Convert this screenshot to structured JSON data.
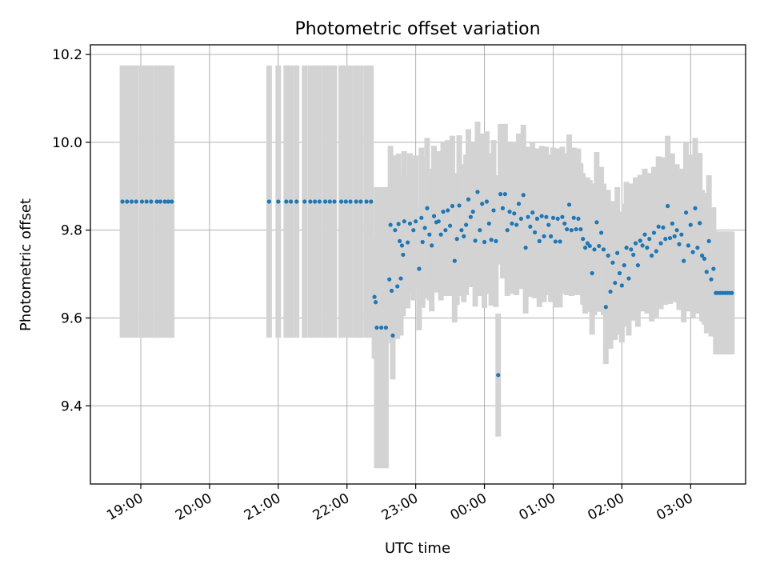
{
  "chart_data": {
    "type": "scatter",
    "title": "Photometric offset variation",
    "xlabel": "UTC time",
    "ylabel": "Photometric offset",
    "x_ticks": [
      "19:00",
      "20:00",
      "21:00",
      "22:00",
      "23:00",
      "00:00",
      "01:00",
      "02:00",
      "03:00"
    ],
    "y_ticks": [
      "9.4",
      "9.6",
      "9.8",
      "10.0",
      "10.2"
    ],
    "xlim": [
      "18:16",
      "03:48"
    ],
    "ylim": [
      9.222,
      10.222
    ],
    "grid": true,
    "error_bar_color": "#d3d3d3",
    "point_color": "#1f77b4",
    "points": [
      {
        "t": "18:44",
        "y": 9.865,
        "err": 0.31
      },
      {
        "t": "18:48",
        "y": 9.865,
        "err": 0.31
      },
      {
        "t": "18:52",
        "y": 9.865,
        "err": 0.31
      },
      {
        "t": "18:56",
        "y": 9.865,
        "err": 0.31
      },
      {
        "t": "19:01",
        "y": 9.865,
        "err": 0.31
      },
      {
        "t": "19:05",
        "y": 9.865,
        "err": 0.31
      },
      {
        "t": "19:09",
        "y": 9.865,
        "err": 0.31
      },
      {
        "t": "19:14",
        "y": 9.865,
        "err": 0.31
      },
      {
        "t": "19:17",
        "y": 9.865,
        "err": 0.31
      },
      {
        "t": "19:21",
        "y": 9.865,
        "err": 0.31
      },
      {
        "t": "19:24",
        "y": 9.865,
        "err": 0.31
      },
      {
        "t": "19:27",
        "y": 9.865,
        "err": 0.31
      },
      {
        "t": "20:52",
        "y": 9.865,
        "err": 0.31
      },
      {
        "t": "21:00",
        "y": 9.865,
        "err": 0.31
      },
      {
        "t": "21:07",
        "y": 9.865,
        "err": 0.31
      },
      {
        "t": "21:11",
        "y": 9.865,
        "err": 0.31
      },
      {
        "t": "21:16",
        "y": 9.865,
        "err": 0.31
      },
      {
        "t": "21:23",
        "y": 9.865,
        "err": 0.31
      },
      {
        "t": "21:28",
        "y": 9.865,
        "err": 0.31
      },
      {
        "t": "21:32",
        "y": 9.865,
        "err": 0.31
      },
      {
        "t": "21:36",
        "y": 9.865,
        "err": 0.31
      },
      {
        "t": "21:41",
        "y": 9.865,
        "err": 0.31
      },
      {
        "t": "21:45",
        "y": 9.865,
        "err": 0.31
      },
      {
        "t": "21:49",
        "y": 9.865,
        "err": 0.31
      },
      {
        "t": "21:55",
        "y": 9.865,
        "err": 0.31
      },
      {
        "t": "21:59",
        "y": 9.865,
        "err": 0.31
      },
      {
        "t": "22:03",
        "y": 9.865,
        "err": 0.31
      },
      {
        "t": "22:08",
        "y": 9.865,
        "err": 0.31
      },
      {
        "t": "22:12",
        "y": 9.865,
        "err": 0.31
      },
      {
        "t": "22:17",
        "y": 9.865,
        "err": 0.31
      },
      {
        "t": "22:21",
        "y": 9.865,
        "err": 0.31
      },
      {
        "t": "22:24",
        "y": 9.648,
        "err": 0.14
      },
      {
        "t": "22:25",
        "y": 9.636,
        "err": 0.13
      },
      {
        "t": "22:26",
        "y": 9.578,
        "err": 0.32
      },
      {
        "t": "22:30",
        "y": 9.578,
        "err": 0.32
      },
      {
        "t": "22:34",
        "y": 9.578,
        "err": 0.32
      },
      {
        "t": "22:37",
        "y": 9.688,
        "err": 0.12
      },
      {
        "t": "22:38",
        "y": 9.812,
        "err": 0.18
      },
      {
        "t": "22:39",
        "y": 9.662,
        "err": 0.12
      },
      {
        "t": "22:40",
        "y": 9.56,
        "err": 0.1
      },
      {
        "t": "22:42",
        "y": 9.8,
        "err": 0.17
      },
      {
        "t": "22:44",
        "y": 9.672,
        "err": 0.12
      },
      {
        "t": "22:45",
        "y": 9.814,
        "err": 0.16
      },
      {
        "t": "22:46",
        "y": 9.775,
        "err": 0.15
      },
      {
        "t": "22:47",
        "y": 9.69,
        "err": 0.13
      },
      {
        "t": "22:48",
        "y": 9.765,
        "err": 0.15
      },
      {
        "t": "22:49",
        "y": 9.744,
        "err": 0.14
      },
      {
        "t": "22:50",
        "y": 9.82,
        "err": 0.16
      },
      {
        "t": "22:53",
        "y": 9.772,
        "err": 0.15
      },
      {
        "t": "22:55",
        "y": 9.815,
        "err": 0.16
      },
      {
        "t": "22:58",
        "y": 9.8,
        "err": 0.16
      },
      {
        "t": "23:00",
        "y": 9.82,
        "err": 0.15
      },
      {
        "t": "23:03",
        "y": 9.712,
        "err": 0.14
      },
      {
        "t": "23:05",
        "y": 9.828,
        "err": 0.16
      },
      {
        "t": "23:06",
        "y": 9.773,
        "err": 0.15
      },
      {
        "t": "23:08",
        "y": 9.805,
        "err": 0.16
      },
      {
        "t": "23:10",
        "y": 9.85,
        "err": 0.16
      },
      {
        "t": "23:12",
        "y": 9.79,
        "err": 0.15
      },
      {
        "t": "23:14",
        "y": 9.765,
        "err": 0.15
      },
      {
        "t": "23:16",
        "y": 9.832,
        "err": 0.16
      },
      {
        "t": "23:18",
        "y": 9.818,
        "err": 0.16
      },
      {
        "t": "23:20",
        "y": 9.82,
        "err": 0.16
      },
      {
        "t": "23:22",
        "y": 9.79,
        "err": 0.15
      },
      {
        "t": "23:24",
        "y": 9.842,
        "err": 0.16
      },
      {
        "t": "23:26",
        "y": 9.8,
        "err": 0.15
      },
      {
        "t": "23:28",
        "y": 9.845,
        "err": 0.16
      },
      {
        "t": "23:30",
        "y": 9.81,
        "err": 0.16
      },
      {
        "t": "23:32",
        "y": 9.855,
        "err": 0.16
      },
      {
        "t": "23:34",
        "y": 9.73,
        "err": 0.14
      },
      {
        "t": "23:36",
        "y": 9.78,
        "err": 0.15
      },
      {
        "t": "23:38",
        "y": 9.856,
        "err": 0.16
      },
      {
        "t": "23:40",
        "y": 9.8,
        "err": 0.15
      },
      {
        "t": "23:42",
        "y": 9.786,
        "err": 0.15
      },
      {
        "t": "23:44",
        "y": 9.812,
        "err": 0.16
      },
      {
        "t": "23:46",
        "y": 9.87,
        "err": 0.16
      },
      {
        "t": "23:48",
        "y": 9.83,
        "err": 0.16
      },
      {
        "t": "23:50",
        "y": 9.842,
        "err": 0.16
      },
      {
        "t": "23:52",
        "y": 9.776,
        "err": 0.15
      },
      {
        "t": "23:54",
        "y": 9.887,
        "err": 0.16
      },
      {
        "t": "23:56",
        "y": 9.8,
        "err": 0.15
      },
      {
        "t": "23:58",
        "y": 9.86,
        "err": 0.16
      },
      {
        "t": "00:00",
        "y": 9.773,
        "err": 0.15
      },
      {
        "t": "00:02",
        "y": 9.865,
        "err": 0.16
      },
      {
        "t": "00:04",
        "y": 9.815,
        "err": 0.16
      },
      {
        "t": "00:06",
        "y": 9.778,
        "err": 0.15
      },
      {
        "t": "00:08",
        "y": 9.845,
        "err": 0.16
      },
      {
        "t": "00:10",
        "y": 9.775,
        "err": 0.15
      },
      {
        "t": "00:12",
        "y": 9.47,
        "err": 0.14
      },
      {
        "t": "00:14",
        "y": 9.882,
        "err": 0.16
      },
      {
        "t": "00:16",
        "y": 9.85,
        "err": 0.16
      },
      {
        "t": "00:18",
        "y": 9.882,
        "err": 0.16
      },
      {
        "t": "00:20",
        "y": 9.8,
        "err": 0.15
      },
      {
        "t": "00:22",
        "y": 9.842,
        "err": 0.16
      },
      {
        "t": "00:24",
        "y": 9.815,
        "err": 0.16
      },
      {
        "t": "00:26",
        "y": 9.838,
        "err": 0.16
      },
      {
        "t": "00:28",
        "y": 9.812,
        "err": 0.16
      },
      {
        "t": "00:30",
        "y": 9.86,
        "err": 0.16
      },
      {
        "t": "00:32",
        "y": 9.826,
        "err": 0.16
      },
      {
        "t": "00:34",
        "y": 9.88,
        "err": 0.16
      },
      {
        "t": "00:36",
        "y": 9.76,
        "err": 0.15
      },
      {
        "t": "00:38",
        "y": 9.83,
        "err": 0.16
      },
      {
        "t": "00:40",
        "y": 9.808,
        "err": 0.16
      },
      {
        "t": "00:42",
        "y": 9.84,
        "err": 0.16
      },
      {
        "t": "00:44",
        "y": 9.795,
        "err": 0.15
      },
      {
        "t": "00:46",
        "y": 9.826,
        "err": 0.16
      },
      {
        "t": "00:48",
        "y": 9.775,
        "err": 0.15
      },
      {
        "t": "00:50",
        "y": 9.832,
        "err": 0.16
      },
      {
        "t": "00:52",
        "y": 9.786,
        "err": 0.15
      },
      {
        "t": "00:54",
        "y": 9.83,
        "err": 0.16
      },
      {
        "t": "00:56",
        "y": 9.812,
        "err": 0.16
      },
      {
        "t": "00:58",
        "y": 9.786,
        "err": 0.15
      },
      {
        "t": "01:00",
        "y": 9.828,
        "err": 0.16
      },
      {
        "t": "01:02",
        "y": 9.774,
        "err": 0.15
      },
      {
        "t": "01:04",
        "y": 9.826,
        "err": 0.16
      },
      {
        "t": "01:06",
        "y": 9.774,
        "err": 0.15
      },
      {
        "t": "01:08",
        "y": 9.83,
        "err": 0.16
      },
      {
        "t": "01:10",
        "y": 9.815,
        "err": 0.16
      },
      {
        "t": "01:12",
        "y": 9.802,
        "err": 0.15
      },
      {
        "t": "01:14",
        "y": 9.858,
        "err": 0.16
      },
      {
        "t": "01:16",
        "y": 9.8,
        "err": 0.15
      },
      {
        "t": "01:18",
        "y": 9.828,
        "err": 0.16
      },
      {
        "t": "01:20",
        "y": 9.802,
        "err": 0.15
      },
      {
        "t": "01:22",
        "y": 9.826,
        "err": 0.16
      },
      {
        "t": "01:24",
        "y": 9.802,
        "err": 0.15
      },
      {
        "t": "01:26",
        "y": 9.78,
        "err": 0.15
      },
      {
        "t": "01:28",
        "y": 9.76,
        "err": 0.15
      },
      {
        "t": "01:30",
        "y": 9.77,
        "err": 0.15
      },
      {
        "t": "01:32",
        "y": 9.764,
        "err": 0.15
      },
      {
        "t": "01:34",
        "y": 9.702,
        "err": 0.14
      },
      {
        "t": "01:36",
        "y": 9.756,
        "err": 0.15
      },
      {
        "t": "01:38",
        "y": 9.818,
        "err": 0.16
      },
      {
        "t": "01:40",
        "y": 9.764,
        "err": 0.15
      },
      {
        "t": "01:42",
        "y": 9.794,
        "err": 0.15
      },
      {
        "t": "01:44",
        "y": 9.756,
        "err": 0.15
      },
      {
        "t": "01:46",
        "y": 9.625,
        "err": 0.13
      },
      {
        "t": "01:48",
        "y": 9.742,
        "err": 0.15
      },
      {
        "t": "01:50",
        "y": 9.66,
        "err": 0.13
      },
      {
        "t": "01:52",
        "y": 9.726,
        "err": 0.14
      },
      {
        "t": "01:54",
        "y": 9.68,
        "err": 0.13
      },
      {
        "t": "01:56",
        "y": 9.748,
        "err": 0.15
      },
      {
        "t": "01:58",
        "y": 9.702,
        "err": 0.14
      },
      {
        "t": "02:00",
        "y": 9.674,
        "err": 0.13
      },
      {
        "t": "02:02",
        "y": 9.72,
        "err": 0.14
      },
      {
        "t": "02:04",
        "y": 9.76,
        "err": 0.15
      },
      {
        "t": "02:06",
        "y": 9.69,
        "err": 0.13
      },
      {
        "t": "02:08",
        "y": 9.756,
        "err": 0.15
      },
      {
        "t": "02:10",
        "y": 9.744,
        "err": 0.15
      },
      {
        "t": "02:12",
        "y": 9.77,
        "err": 0.15
      },
      {
        "t": "02:14",
        "y": 9.72,
        "err": 0.14
      },
      {
        "t": "02:16",
        "y": 9.776,
        "err": 0.15
      },
      {
        "t": "02:18",
        "y": 9.765,
        "err": 0.15
      },
      {
        "t": "02:20",
        "y": 9.79,
        "err": 0.15
      },
      {
        "t": "02:22",
        "y": 9.76,
        "err": 0.15
      },
      {
        "t": "02:24",
        "y": 9.78,
        "err": 0.15
      },
      {
        "t": "02:26",
        "y": 9.742,
        "err": 0.15
      },
      {
        "t": "02:28",
        "y": 9.794,
        "err": 0.15
      },
      {
        "t": "02:30",
        "y": 9.752,
        "err": 0.15
      },
      {
        "t": "02:32",
        "y": 9.808,
        "err": 0.16
      },
      {
        "t": "02:34",
        "y": 9.77,
        "err": 0.15
      },
      {
        "t": "02:36",
        "y": 9.806,
        "err": 0.16
      },
      {
        "t": "02:38",
        "y": 9.78,
        "err": 0.15
      },
      {
        "t": "02:40",
        "y": 9.855,
        "err": 0.16
      },
      {
        "t": "02:42",
        "y": 9.782,
        "err": 0.15
      },
      {
        "t": "02:44",
        "y": 9.815,
        "err": 0.16
      },
      {
        "t": "02:46",
        "y": 9.786,
        "err": 0.15
      },
      {
        "t": "02:48",
        "y": 9.8,
        "err": 0.15
      },
      {
        "t": "02:50",
        "y": 9.768,
        "err": 0.15
      },
      {
        "t": "02:52",
        "y": 9.79,
        "err": 0.15
      },
      {
        "t": "02:54",
        "y": 9.73,
        "err": 0.14
      },
      {
        "t": "02:56",
        "y": 9.84,
        "err": 0.16
      },
      {
        "t": "02:58",
        "y": 9.765,
        "err": 0.15
      },
      {
        "t": "03:00",
        "y": 9.812,
        "err": 0.16
      },
      {
        "t": "03:02",
        "y": 9.75,
        "err": 0.15
      },
      {
        "t": "03:04",
        "y": 9.85,
        "err": 0.16
      },
      {
        "t": "03:06",
        "y": 9.76,
        "err": 0.15
      },
      {
        "t": "03:08",
        "y": 9.816,
        "err": 0.16
      },
      {
        "t": "03:10",
        "y": 9.742,
        "err": 0.15
      },
      {
        "t": "03:12",
        "y": 9.735,
        "err": 0.15
      },
      {
        "t": "03:14",
        "y": 9.705,
        "err": 0.14
      },
      {
        "t": "03:16",
        "y": 9.775,
        "err": 0.15
      },
      {
        "t": "03:18",
        "y": 9.688,
        "err": 0.13
      },
      {
        "t": "03:20",
        "y": 9.712,
        "err": 0.14
      },
      {
        "t": "03:22",
        "y": 9.657,
        "err": 0.14
      },
      {
        "t": "03:24",
        "y": 9.657,
        "err": 0.14
      },
      {
        "t": "03:26",
        "y": 9.657,
        "err": 0.14
      },
      {
        "t": "03:28",
        "y": 9.657,
        "err": 0.14
      },
      {
        "t": "03:30",
        "y": 9.657,
        "err": 0.14
      },
      {
        "t": "03:32",
        "y": 9.657,
        "err": 0.14
      },
      {
        "t": "03:34",
        "y": 9.657,
        "err": 0.14
      },
      {
        "t": "03:36",
        "y": 9.657,
        "err": 0.14
      }
    ]
  }
}
